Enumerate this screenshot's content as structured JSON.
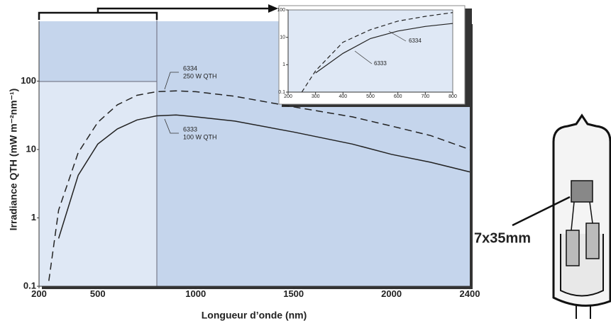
{
  "chart_data": [
    {
      "type": "line",
      "yscale": "log",
      "x_label": "Longueur d’onde (nm)",
      "y_label": "Irradiance QTH (mW m⁻²nm⁻¹)",
      "x": [
        250,
        300,
        400,
        500,
        600,
        700,
        800,
        900,
        1000,
        1200,
        1500,
        1800,
        2000,
        2200,
        2400
      ],
      "series": [
        {
          "name": "6334",
          "color": "#222222",
          "dashed": true,
          "values": [
            0.12,
            1.3,
            9,
            25,
            45,
            62,
            70,
            72,
            70,
            60,
            42,
            30,
            22,
            16,
            10
          ]
        },
        {
          "name": "6333",
          "color": "#222222",
          "dashed": false,
          "values": [
            null,
            0.5,
            4.2,
            12,
            20,
            27,
            31,
            32,
            30,
            26,
            18,
            12,
            8.5,
            6.5,
            4.7
          ]
        }
      ],
      "annotations": [
        "6334",
        "250 W QTH",
        "6333",
        "100 W QTH"
      ],
      "xlim": [
        200,
        2400
      ],
      "xticks": [
        200,
        500,
        1000,
        1500,
        2000,
        2400
      ],
      "ylim": [
        0.1,
        750
      ],
      "yticks": [
        0.1,
        1,
        10,
        100
      ]
    },
    {
      "type": "line",
      "yscale": "log",
      "x": [
        250,
        300,
        400,
        500,
        600,
        700,
        800
      ],
      "series": [
        {
          "name": "6334",
          "color": "#222222",
          "dashed": true,
          "values": [
            0.1,
            0.6,
            6.6,
            19,
            39,
            58,
            80
          ]
        },
        {
          "name": "6333",
          "color": "#222222",
          "dashed": false,
          "values": [
            null,
            0.5,
            2.6,
            9,
            17,
            25,
            32
          ]
        }
      ],
      "annotations": [
        "6334",
        "6333"
      ],
      "xlim": [
        200,
        800
      ],
      "xticks": [
        200,
        300,
        400,
        500,
        600,
        700,
        800
      ],
      "ylim": [
        0.1,
        100
      ],
      "yticks": [
        0.1,
        1,
        10,
        100
      ]
    }
  ],
  "lamp_label": "7x35mm"
}
